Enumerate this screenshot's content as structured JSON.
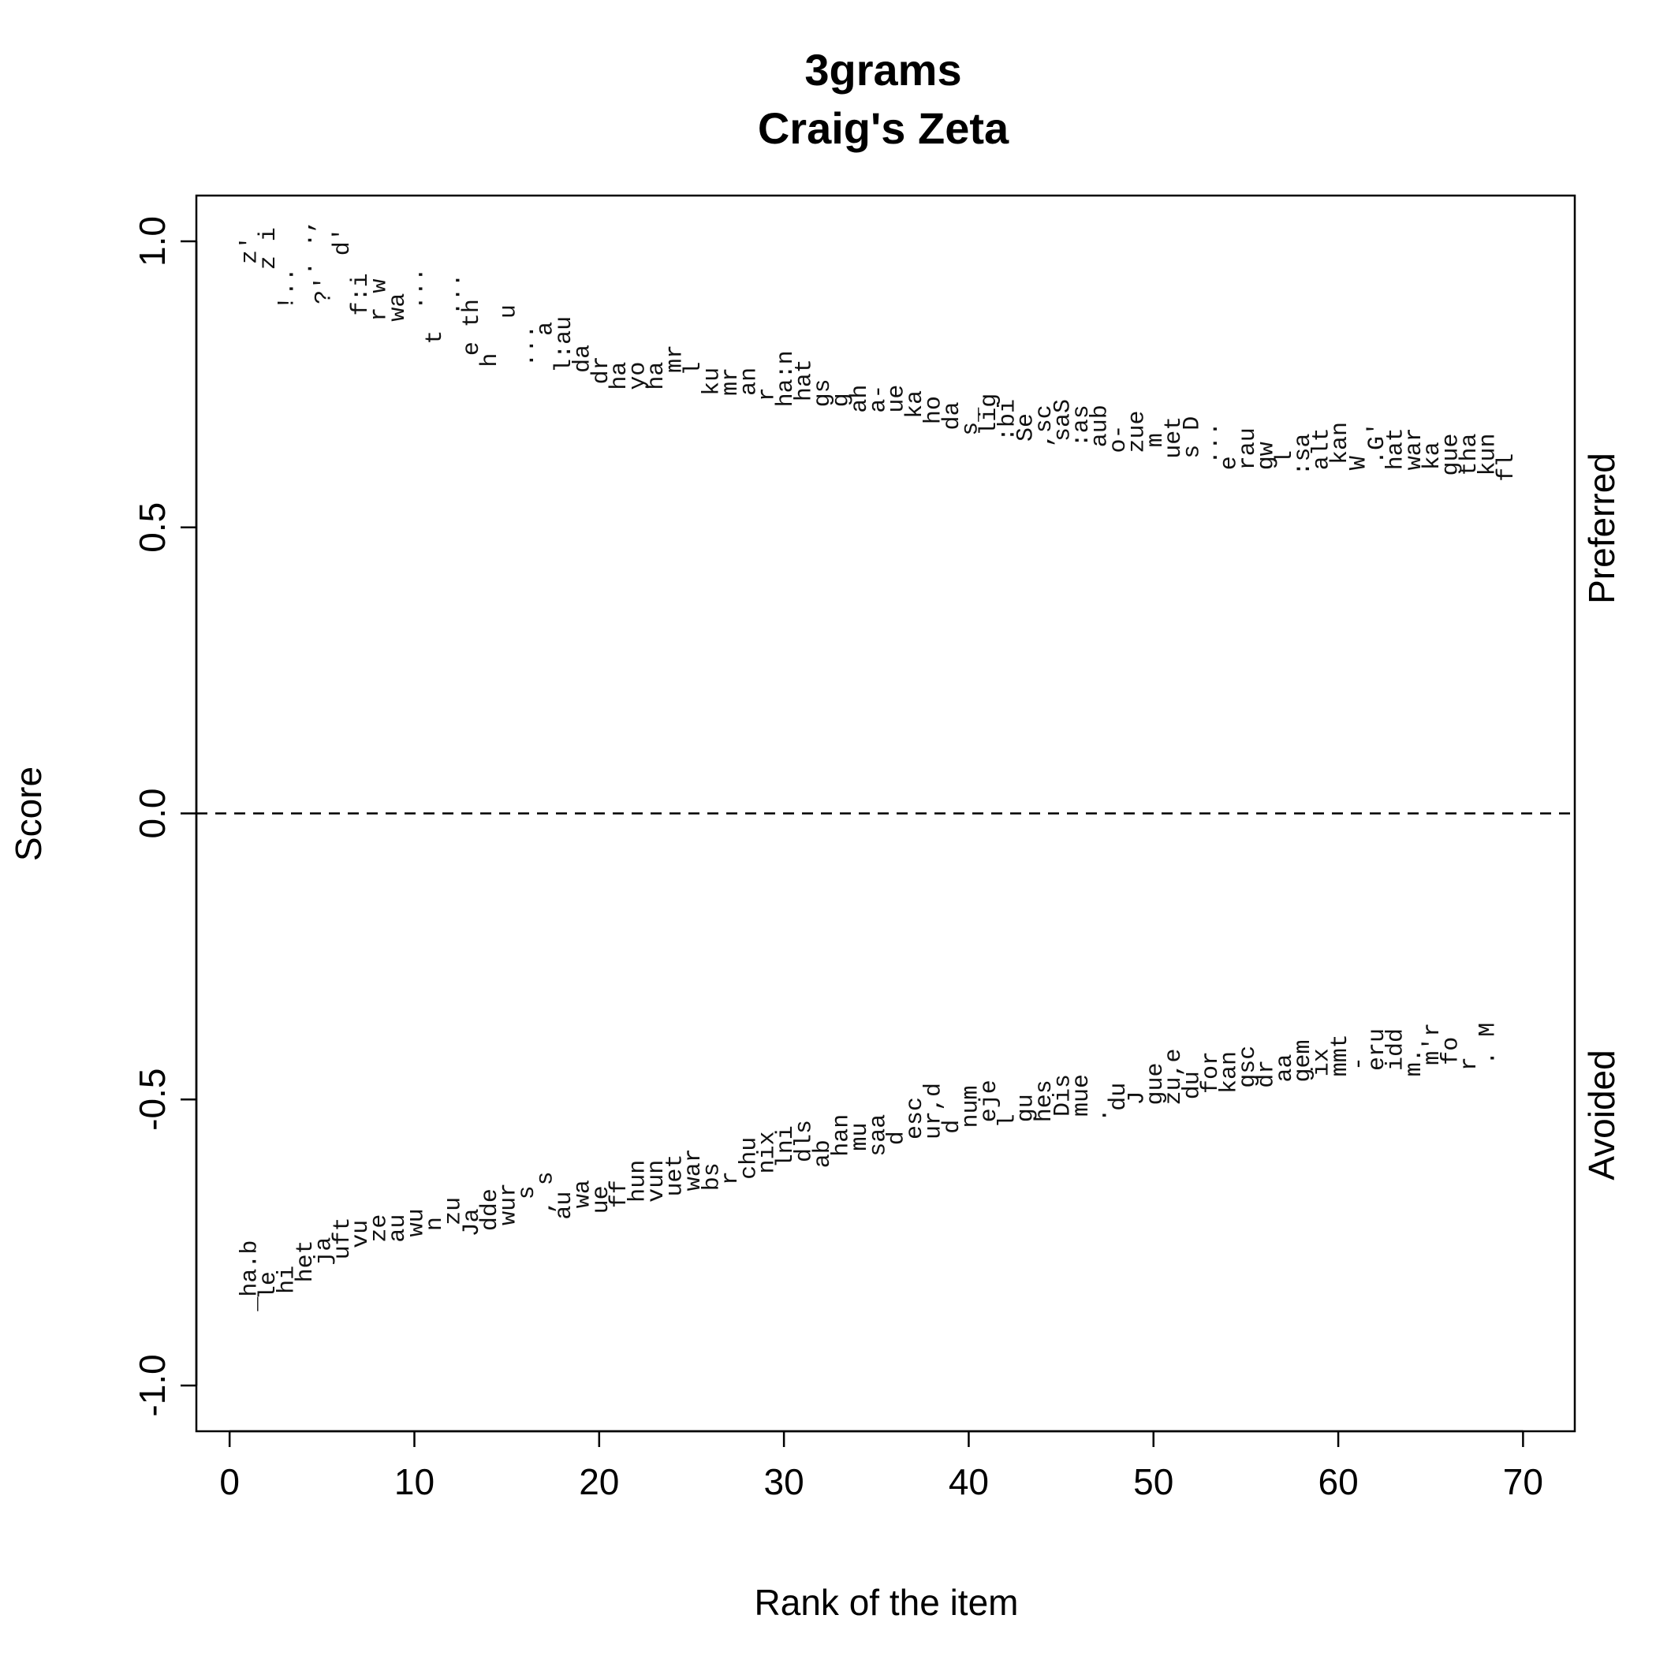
{
  "chart_data": {
    "type": "scatter",
    "title": "3grams",
    "subtitle": "Craig's Zeta",
    "xlabel": "Rank of the item",
    "ylabel": "Score",
    "xlim": [
      -1.8,
      72.8
    ],
    "ylim": [
      -1.08,
      1.08
    ],
    "xticks": [
      0,
      10,
      20,
      30,
      40,
      50,
      60,
      70
    ],
    "yticks": [
      -1.0,
      -0.5,
      0.0,
      0.5,
      1.0
    ],
    "xtick_labels": [
      "0",
      "10",
      "20",
      "30",
      "40",
      "50",
      "60",
      "70"
    ],
    "ytick_labels": [
      "-1.0",
      "-0.5",
      "0.0",
      "0.5",
      "1.0"
    ],
    "reference_line": 0.0,
    "grid": false,
    "legend": "none",
    "series": [
      {
        "name": "Preferred",
        "points": [
          {
            "x": 1,
            "y": 0.96,
            "label": "z' "
          },
          {
            "x": 2,
            "y": 0.95,
            "label": "z i"
          },
          {
            "x": 3,
            "y": 0.88,
            "label": "!.. "
          },
          {
            "x": 4,
            "y": 0.94,
            "label": ". ., "
          },
          {
            "x": 5,
            "y": 0.89,
            "label": "?' "
          },
          {
            "x": 6,
            "y": 0.95,
            "label": " d'"
          },
          {
            "x": 7,
            "y": 0.87,
            "label": "f:i"
          },
          {
            "x": 8,
            "y": 0.86,
            "label": "r w"
          },
          {
            "x": 9,
            "y": 0.86,
            "label": "wa"
          },
          {
            "x": 10,
            "y": 0.88,
            "label": "... "
          },
          {
            "x": 11,
            "y": 0.82,
            "label": "t "
          },
          {
            "x": 12,
            "y": 0.87,
            "label": "... "
          },
          {
            "x": 13,
            "y": 0.8,
            "label": "e th"
          },
          {
            "x": 14,
            "y": 0.78,
            "label": "h "
          },
          {
            "x": 15,
            "y": 0.84,
            "label": " u"
          },
          {
            "x": 16,
            "y": 0.78,
            "label": "... "
          },
          {
            "x": 17,
            "y": 0.81,
            "label": " a"
          },
          {
            "x": 18,
            "y": 0.77,
            "label": "l:au"
          },
          {
            "x": 19,
            "y": 0.77,
            "label": "da"
          },
          {
            "x": 20,
            "y": 0.75,
            "label": "dr"
          },
          {
            "x": 21,
            "y": 0.74,
            "label": "ha"
          },
          {
            "x": 22,
            "y": 0.74,
            "label": "yo"
          },
          {
            "x": 23,
            "y": 0.74,
            "label": "ha"
          },
          {
            "x": 24,
            "y": 0.77,
            "label": "mr"
          },
          {
            "x": 25,
            "y": 0.74,
            "label": " l "
          },
          {
            "x": 26,
            "y": 0.73,
            "label": "ku"
          },
          {
            "x": 27,
            "y": 0.73,
            "label": "mr"
          },
          {
            "x": 28,
            "y": 0.73,
            "label": "an"
          },
          {
            "x": 29,
            "y": 0.72,
            "label": "r "
          },
          {
            "x": 30,
            "y": 0.71,
            "label": "ha:n"
          },
          {
            "x": 31,
            "y": 0.72,
            "label": "hat"
          },
          {
            "x": 32,
            "y": 0.71,
            "label": "gs"
          },
          {
            "x": 33,
            "y": 0.71,
            "label": "g "
          },
          {
            "x": 34,
            "y": 0.7,
            "label": "ah"
          },
          {
            "x": 35,
            "y": 0.7,
            "label": "a- "
          },
          {
            "x": 36,
            "y": 0.7,
            "label": "ue"
          },
          {
            "x": 37,
            "y": 0.69,
            "label": "ka"
          },
          {
            "x": 38,
            "y": 0.68,
            "label": "ho"
          },
          {
            "x": 39,
            "y": 0.67,
            "label": "da"
          },
          {
            "x": 40,
            "y": 0.66,
            "label": "s_"
          },
          {
            "x": 41,
            "y": 0.66,
            "label": "lig"
          },
          {
            "x": 42,
            "y": 0.65,
            "label": ":bi"
          },
          {
            "x": 43,
            "y": 0.65,
            "label": "Se"
          },
          {
            "x": 44,
            "y": 0.64,
            "label": ",sc"
          },
          {
            "x": 45,
            "y": 0.65,
            "label": "saS"
          },
          {
            "x": 46,
            "y": 0.64,
            "label": ":as"
          },
          {
            "x": 47,
            "y": 0.64,
            "label": "aub"
          },
          {
            "x": 48,
            "y": 0.63,
            "label": "o- "
          },
          {
            "x": 49,
            "y": 0.63,
            "label": "zue"
          },
          {
            "x": 50,
            "y": 0.64,
            "label": "m "
          },
          {
            "x": 51,
            "y": 0.62,
            "label": "uet"
          },
          {
            "x": 52,
            "y": 0.62,
            "label": "s D"
          },
          {
            "x": 53,
            "y": 0.61,
            "label": "... "
          },
          {
            "x": 54,
            "y": 0.6,
            "label": "e "
          },
          {
            "x": 55,
            "y": 0.6,
            "label": "rau"
          },
          {
            "x": 56,
            "y": 0.6,
            "label": "gw"
          },
          {
            "x": 57,
            "y": 0.61,
            "label": "l "
          },
          {
            "x": 58,
            "y": 0.59,
            "label": ":sa"
          },
          {
            "x": 59,
            "y": 0.6,
            "label": "alt"
          },
          {
            "x": 60,
            "y": 0.61,
            "label": "kan"
          },
          {
            "x": 61,
            "y": 0.6,
            "label": "W "
          },
          {
            "x": 62,
            "y": 0.61,
            "label": ".G'"
          },
          {
            "x": 63,
            "y": 0.6,
            "label": "hat"
          },
          {
            "x": 64,
            "y": 0.6,
            "label": "war"
          },
          {
            "x": 65,
            "y": 0.6,
            "label": "ka"
          },
          {
            "x": 66,
            "y": 0.59,
            "label": "gue"
          },
          {
            "x": 67,
            "y": 0.59,
            "label": "tha"
          },
          {
            "x": 68,
            "y": 0.59,
            "label": "kun"
          },
          {
            "x": 69,
            "y": 0.58,
            "label": "fl "
          }
        ]
      },
      {
        "name": "Avoided",
        "points": [
          {
            "x": 1,
            "y": -0.87,
            "label": "_ha.b"
          },
          {
            "x": 2,
            "y": -0.85,
            "label": "le "
          },
          {
            "x": 3,
            "y": -0.84,
            "label": "hi "
          },
          {
            "x": 4,
            "y": -0.82,
            "label": "het"
          },
          {
            "x": 5,
            "y": -0.79,
            "label": "ja "
          },
          {
            "x": 6,
            "y": -0.78,
            "label": "uft"
          },
          {
            "x": 7,
            "y": -0.76,
            "label": "vu "
          },
          {
            "x": 8,
            "y": -0.75,
            "label": "ze "
          },
          {
            "x": 9,
            "y": -0.75,
            "label": "au"
          },
          {
            "x": 10,
            "y": -0.74,
            "label": "wu"
          },
          {
            "x": 11,
            "y": -0.73,
            "label": "n "
          },
          {
            "x": 12,
            "y": -0.72,
            "label": "zu"
          },
          {
            "x": 13,
            "y": -0.74,
            "label": "Ja"
          },
          {
            "x": 14,
            "y": -0.73,
            "label": "dde"
          },
          {
            "x": 15,
            "y": -0.72,
            "label": "wur"
          },
          {
            "x": 16,
            "y": -0.7,
            "label": " s"
          },
          {
            "x": 17,
            "y": -0.7,
            "label": ", s"
          },
          {
            "x": 18,
            "y": -0.71,
            "label": "au"
          },
          {
            "x": 19,
            "y": -0.69,
            "label": "wa"
          },
          {
            "x": 20,
            "y": -0.7,
            "label": "ue"
          },
          {
            "x": 21,
            "y": -0.69,
            "label": "ff"
          },
          {
            "x": 22,
            "y": -0.68,
            "label": "hun"
          },
          {
            "x": 23,
            "y": -0.68,
            "label": "vun"
          },
          {
            "x": 24,
            "y": -0.67,
            "label": "uet"
          },
          {
            "x": 25,
            "y": -0.66,
            "label": "war"
          },
          {
            "x": 26,
            "y": -0.66,
            "label": "bs"
          },
          {
            "x": 27,
            "y": -0.65,
            "label": "r "
          },
          {
            "x": 28,
            "y": -0.64,
            "label": "chu"
          },
          {
            "x": 29,
            "y": -0.63,
            "label": "nix"
          },
          {
            "x": 30,
            "y": -0.62,
            "label": "lni"
          },
          {
            "x": 31,
            "y": -0.61,
            "label": "dls"
          },
          {
            "x": 32,
            "y": -0.62,
            "label": "ab"
          },
          {
            "x": 33,
            "y": -0.6,
            "label": "han"
          },
          {
            "x": 34,
            "y": -0.59,
            "label": "mu"
          },
          {
            "x": 35,
            "y": -0.6,
            "label": "saa"
          },
          {
            "x": 36,
            "y": -0.58,
            "label": "d "
          },
          {
            "x": 37,
            "y": -0.57,
            "label": "esc"
          },
          {
            "x": 38,
            "y": -0.57,
            "label": "ur,d"
          },
          {
            "x": 39,
            "y": -0.56,
            "label": "d "
          },
          {
            "x": 40,
            "y": -0.55,
            "label": "num"
          },
          {
            "x": 41,
            "y": -0.54,
            "label": "eje"
          },
          {
            "x": 42,
            "y": -0.55,
            "label": "l "
          },
          {
            "x": 43,
            "y": -0.54,
            "label": "gu"
          },
          {
            "x": 44,
            "y": -0.54,
            "label": "hes"
          },
          {
            "x": 45,
            "y": -0.53,
            "label": "Dis"
          },
          {
            "x": 46,
            "y": -0.53,
            "label": "mue"
          },
          {
            "x": 47,
            "y": -0.54,
            "label": ". "
          },
          {
            "x": 48,
            "y": -0.52,
            "label": "du"
          },
          {
            "x": 49,
            "y": -0.51,
            "label": "J "
          },
          {
            "x": 50,
            "y": -0.51,
            "label": "gue"
          },
          {
            "x": 51,
            "y": -0.51,
            "label": "zu,e"
          },
          {
            "x": 52,
            "y": -0.5,
            "label": "du"
          },
          {
            "x": 53,
            "y": -0.49,
            "label": "for"
          },
          {
            "x": 54,
            "y": -0.49,
            "label": "kan"
          },
          {
            "x": 55,
            "y": -0.48,
            "label": "gsc"
          },
          {
            "x": 56,
            "y": -0.48,
            "label": "dr"
          },
          {
            "x": 57,
            "y": -0.47,
            "label": "aa"
          },
          {
            "x": 58,
            "y": -0.47,
            "label": "gem"
          },
          {
            "x": 59,
            "y": -0.46,
            "label": "ix"
          },
          {
            "x": 60,
            "y": -0.46,
            "label": "mmt"
          },
          {
            "x": 61,
            "y": -0.45,
            "label": "- "
          },
          {
            "x": 62,
            "y": -0.45,
            "label": "eru"
          },
          {
            "x": 63,
            "y": -0.45,
            "label": "idd"
          },
          {
            "x": 64,
            "y": -0.46,
            "label": "m. "
          },
          {
            "x": 65,
            "y": -0.44,
            "label": "m'r"
          },
          {
            "x": 66,
            "y": -0.44,
            "label": "fo"
          },
          {
            "x": 67,
            "y": -0.45,
            "label": "r "
          },
          {
            "x": 68,
            "y": -0.44,
            "label": ". M"
          }
        ]
      }
    ],
    "margin_labels": {
      "top": "Preferred",
      "bottom": "Avoided"
    }
  }
}
